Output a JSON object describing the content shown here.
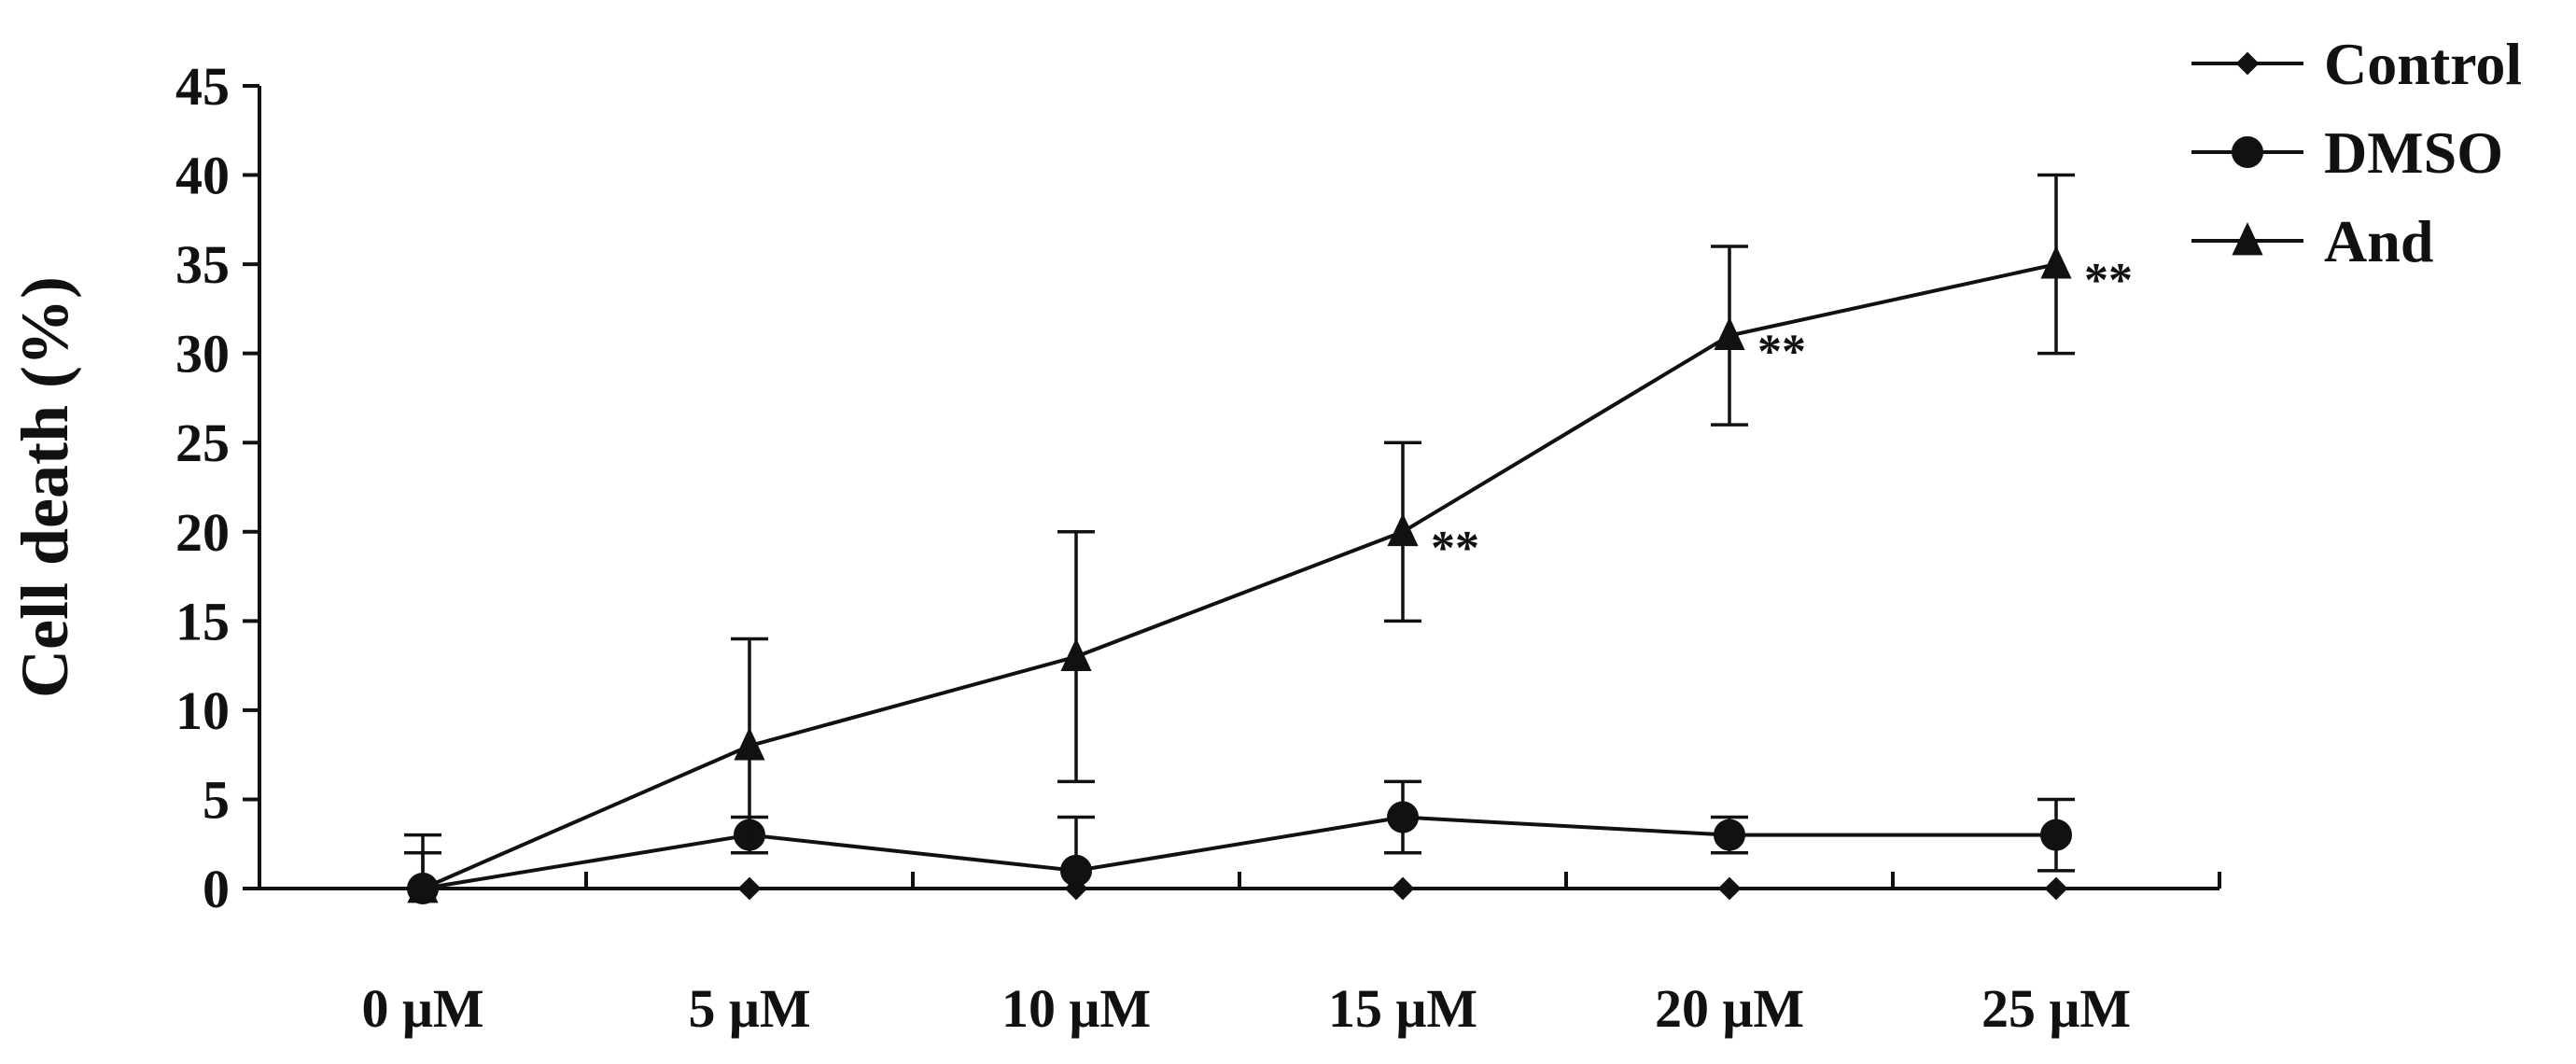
{
  "chart_data": {
    "type": "line",
    "title": "",
    "xlabel": "",
    "ylabel": "Cell death (%)",
    "categories": [
      "0 μM",
      "5 μM",
      "10 μM",
      "15 μM",
      "20 μM",
      "25 μM"
    ],
    "ylim": [
      0,
      45
    ],
    "y_ticks": [
      0,
      5,
      10,
      15,
      20,
      25,
      30,
      35,
      40,
      45
    ],
    "legend_position": "top-right",
    "grid": false,
    "series": [
      {
        "name": "Control",
        "marker": "diamond",
        "color": "#111111",
        "values": [
          0,
          0,
          0,
          0,
          0,
          0
        ],
        "errors": [
          0,
          0,
          0,
          0,
          0,
          0
        ]
      },
      {
        "name": "DMSO",
        "marker": "circle",
        "color": "#111111",
        "values": [
          0,
          3,
          1,
          4,
          3,
          3
        ],
        "errors": [
          3,
          1,
          3,
          2,
          1,
          2
        ]
      },
      {
        "name": "And",
        "marker": "triangle",
        "color": "#111111",
        "values": [
          0,
          8,
          13,
          20,
          31,
          35
        ],
        "errors": [
          2,
          6,
          7,
          5,
          5,
          5
        ],
        "significance": [
          "",
          "",
          "",
          "**",
          "**",
          "**"
        ]
      }
    ]
  }
}
